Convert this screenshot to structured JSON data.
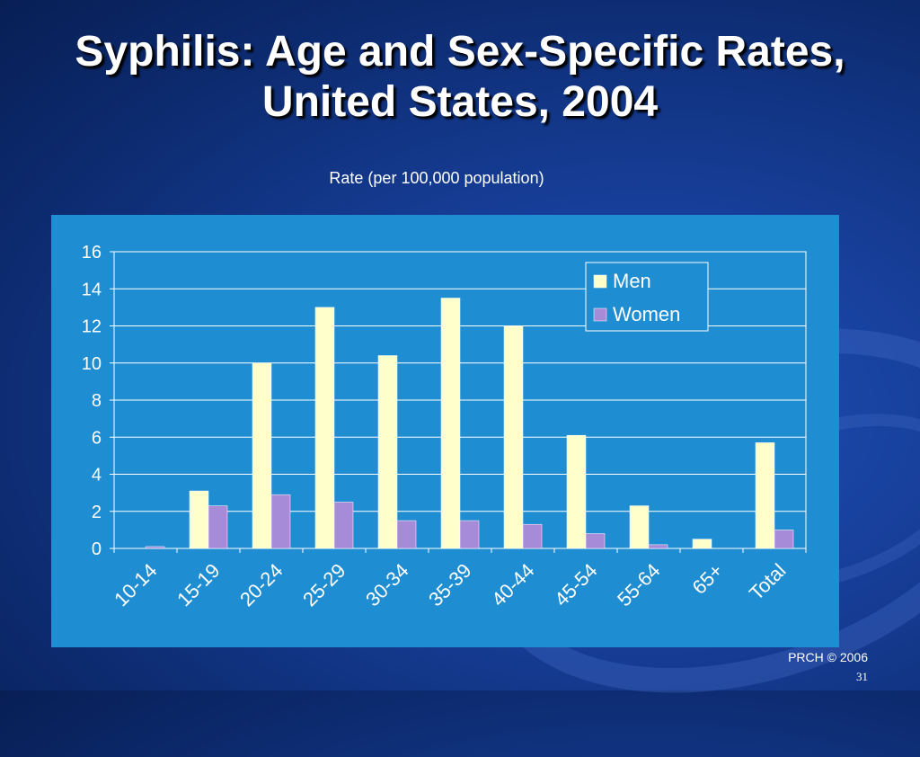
{
  "slide": {
    "title": "Syphilis: Age and Sex-Specific Rates, United States, 2004",
    "subtitle": "Rate (per 100,000 population)",
    "footer": "PRCH © 2006",
    "slide_number": "31"
  },
  "colors": {
    "background": "#173f9a",
    "chart_panel": "#1f8dd1",
    "men": "#ffffcc",
    "women": "#a58bd8"
  },
  "chart_data": {
    "type": "bar",
    "categories": [
      "10-14",
      "15-19",
      "20-24",
      "25-29",
      "30-34",
      "35-39",
      "40-44",
      "45-54",
      "55-64",
      "65+",
      "Total"
    ],
    "series": [
      {
        "name": "Men",
        "values": [
          0,
          3.1,
          10.0,
          13.0,
          10.4,
          13.5,
          12.0,
          6.1,
          2.3,
          0.5,
          5.7
        ]
      },
      {
        "name": "Women",
        "values": [
          0.1,
          2.3,
          2.9,
          2.5,
          1.5,
          1.5,
          1.3,
          0.8,
          0.2,
          0,
          1.0
        ]
      }
    ],
    "title": "",
    "xlabel": "",
    "ylabel": "",
    "ylim": [
      0,
      16
    ],
    "yticks": [
      0,
      2,
      4,
      6,
      8,
      10,
      12,
      14,
      16
    ],
    "grid": true,
    "legend_position": "top-right"
  }
}
